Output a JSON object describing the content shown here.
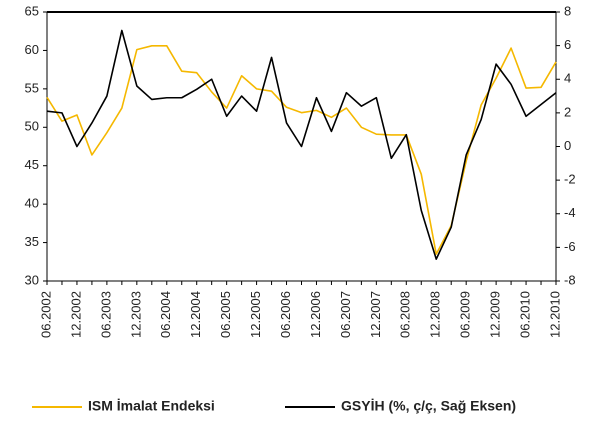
{
  "chart_data": {
    "type": "line",
    "categories": [
      "06.2002",
      null,
      "12.2002",
      null,
      "06.2003",
      null,
      "12.2003",
      null,
      "06.2004",
      null,
      "12.2004",
      null,
      "06.2005",
      null,
      "12.2005",
      null,
      "06.2006",
      null,
      "12.2006",
      null,
      "06.2007",
      null,
      "12.2007",
      null,
      "06.2008",
      null,
      "12.2008",
      null,
      "06.2009",
      null,
      "12.2009",
      null,
      "06.2010",
      null,
      "12.2010"
    ],
    "series": [
      {
        "name": "ISM İmalat Endeksi",
        "color": "#f5b800",
        "axis": "y",
        "values": [
          53.9,
          50.8,
          51.6,
          46.4,
          49.3,
          52.5,
          60.1,
          60.6,
          60.6,
          57.3,
          57.1,
          54.6,
          52.5,
          56.7,
          55.0,
          54.7,
          52.6,
          51.9,
          52.2,
          51.3,
          52.5,
          50.0,
          49.1,
          49.0,
          49.0,
          43.9,
          33.5,
          37.2,
          45.6,
          52.9,
          56.4,
          60.3,
          55.1,
          55.2,
          58.5
        ]
      },
      {
        "name": "GSYİH (%, ç/ç, Sağ Eksen)",
        "color": "#000000",
        "axis": "y2",
        "values": [
          2.1,
          2.0,
          0.0,
          1.4,
          3.0,
          6.9,
          3.6,
          2.8,
          2.9,
          2.9,
          3.4,
          4.0,
          1.8,
          3.0,
          2.1,
          5.3,
          1.4,
          0.0,
          2.9,
          0.9,
          3.2,
          2.4,
          2.9,
          -0.7,
          0.7,
          -3.8,
          -6.7,
          -4.8,
          -0.5,
          1.6,
          4.9,
          3.7,
          1.8,
          2.5,
          3.2
        ]
      }
    ],
    "ylim": [
      30,
      65
    ],
    "yticks": [
      30,
      35,
      40,
      45,
      50,
      55,
      60,
      65
    ],
    "y2lim": [
      -8,
      8
    ],
    "y2ticks": [
      -8,
      -6,
      -4,
      -2,
      0,
      2,
      4,
      6,
      8
    ],
    "grid": false,
    "legend": "bottom"
  }
}
